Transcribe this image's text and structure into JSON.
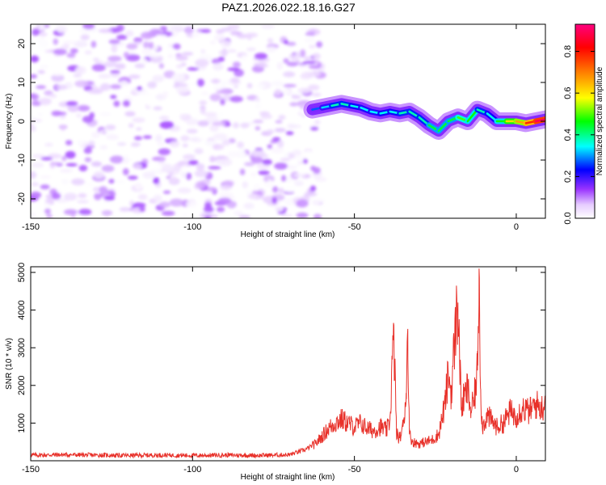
{
  "title": "PAZ1.2026.022.18.16.G27",
  "chart_data": [
    {
      "type": "heatmap",
      "title": "PAZ1.2026.022.18.16.G27",
      "xlabel": "Height of straight line (km)",
      "ylabel": "Frequency (Hz)",
      "xlim": [
        -150,
        9
      ],
      "ylim": [
        -25,
        25
      ],
      "xticks": [
        -150,
        -100,
        -50,
        0
      ],
      "yticks": [
        20,
        10,
        0,
        -10,
        -20
      ],
      "colorbar": {
        "label": "Normalized spectral amplitude",
        "range": [
          0,
          0.93
        ],
        "ticks": [
          0.0,
          0.2,
          0.4,
          0.6,
          0.8
        ],
        "tick_labels": [
          "0.0",
          "0.2",
          "0.4",
          "0.6",
          "0.8"
        ],
        "colormap": [
          "#ffffff",
          "#e6ccff",
          "#9933ff",
          "#0000ff",
          "#00ffff",
          "#00ff00",
          "#ffff00",
          "#ff8000",
          "#ff0000",
          "#ff0080"
        ]
      },
      "noise_region": {
        "x_range": [
          -150,
          -60
        ],
        "freq_range": [
          -25,
          25
        ],
        "amplitude_range": [
          0.0,
          0.2
        ]
      },
      "signal_track": {
        "x": [
          -63,
          -60,
          -57,
          -54,
          -51,
          -48,
          -45,
          -42,
          -39,
          -36,
          -33,
          -30,
          -27,
          -24,
          -21,
          -18,
          -15,
          -12,
          -9,
          -6,
          -3,
          0,
          3,
          6,
          9
        ],
        "freq": [
          3,
          3.5,
          4,
          4.5,
          4,
          3.5,
          2.5,
          2,
          2.5,
          2,
          2.5,
          1,
          -1,
          -2.5,
          0,
          1,
          0,
          3,
          2,
          0,
          0,
          0,
          -0.5,
          0,
          0.5
        ],
        "amplitude": [
          0.2,
          0.25,
          0.3,
          0.35,
          0.3,
          0.3,
          0.28,
          0.3,
          0.3,
          0.3,
          0.35,
          0.3,
          0.35,
          0.4,
          0.35,
          0.4,
          0.45,
          0.35,
          0.3,
          0.3,
          0.5,
          0.55,
          0.6,
          0.75,
          0.8
        ]
      }
    },
    {
      "type": "line",
      "xlabel": "Height of straight line (km)",
      "ylabel": "SNR (10 * v/v)",
      "xlim": [
        -150,
        9
      ],
      "ylim": [
        0,
        5150
      ],
      "xticks": [
        -150,
        -100,
        -50,
        0
      ],
      "yticks": [
        1000,
        2000,
        3000,
        4000,
        5000
      ],
      "color": "#e8312a",
      "x": [
        -150,
        -140,
        -130,
        -120,
        -110,
        -100,
        -90,
        -80,
        -70,
        -65,
        -62,
        -60,
        -58,
        -56,
        -54,
        -52,
        -50,
        -48,
        -46,
        -44,
        -42,
        -40,
        -39,
        -38,
        -37.5,
        -37,
        -36,
        -35,
        -34,
        -33.5,
        -33,
        -32,
        -30,
        -28,
        -26,
        -24,
        -22,
        -21,
        -20,
        -19,
        -18,
        -17,
        -16,
        -15,
        -14,
        -13,
        -12,
        -11.5,
        -11,
        -10.5,
        -10,
        -9,
        -8,
        -6,
        -4,
        -2,
        0,
        2,
        4,
        6,
        8,
        9
      ],
      "y": [
        150,
        160,
        150,
        140,
        150,
        140,
        150,
        140,
        160,
        300,
        450,
        650,
        850,
        1000,
        1100,
        1000,
        900,
        1000,
        850,
        800,
        900,
        800,
        1100,
        3200,
        2500,
        700,
        600,
        900,
        1800,
        3500,
        700,
        500,
        450,
        500,
        550,
        700,
        1500,
        2300,
        1800,
        3300,
        4200,
        1400,
        1700,
        1900,
        1300,
        1600,
        2400,
        5100,
        1900,
        900,
        1000,
        1200,
        1100,
        900,
        1000,
        1300,
        1200,
        1400,
        1300,
        1500,
        1400,
        1600
      ]
    }
  ]
}
